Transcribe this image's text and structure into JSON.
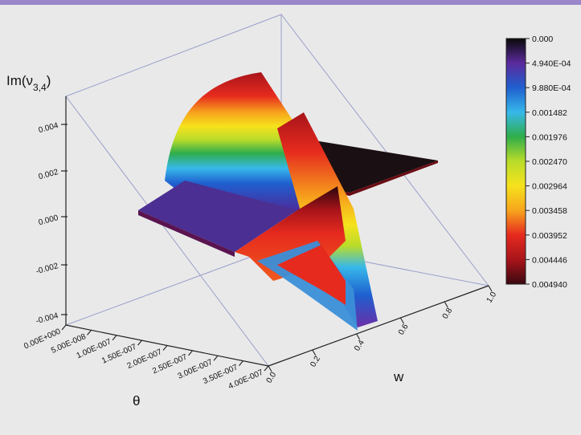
{
  "chart_data": {
    "type": "surface-3d",
    "title": "",
    "zlabel": "Im(ν",
    "zlabel_sub": "3,4",
    "xlabel": "w",
    "ylabel": "θ",
    "x_ticks": [
      "0.0",
      "0.2",
      "0.4",
      "0.6",
      "0.8",
      "1.0"
    ],
    "xlim": [
      0,
      1
    ],
    "y_ticks": [
      "0.00E+000",
      "5.00E-008",
      "1.00E-007",
      "1.50E-007",
      "2.00E-007",
      "2.50E-007",
      "3.00E-007",
      "3.50E-007",
      "4.00E-007"
    ],
    "ylim": [
      0,
      4e-07
    ],
    "z_ticks": [
      "-0.004",
      "-0.002",
      "0.000",
      "0.002",
      "0.004"
    ],
    "zlim": [
      -0.005,
      0.005
    ],
    "colorbar": {
      "labels": [
        "0.000",
        "4.940E-04",
        "9.880E-04",
        "0.001482",
        "0.001976",
        "0.002470",
        "0.002964",
        "0.003458",
        "0.003952",
        "0.004446",
        "0.004940"
      ],
      "colors": [
        "#0a0a0a",
        "#5b2a9c",
        "#1f5fcf",
        "#36b8ea",
        "#2fae4a",
        "#b9dc2a",
        "#f6e21c",
        "#f7a41c",
        "#e62a1e",
        "#a8141a",
        "#3a0810"
      ]
    }
  }
}
